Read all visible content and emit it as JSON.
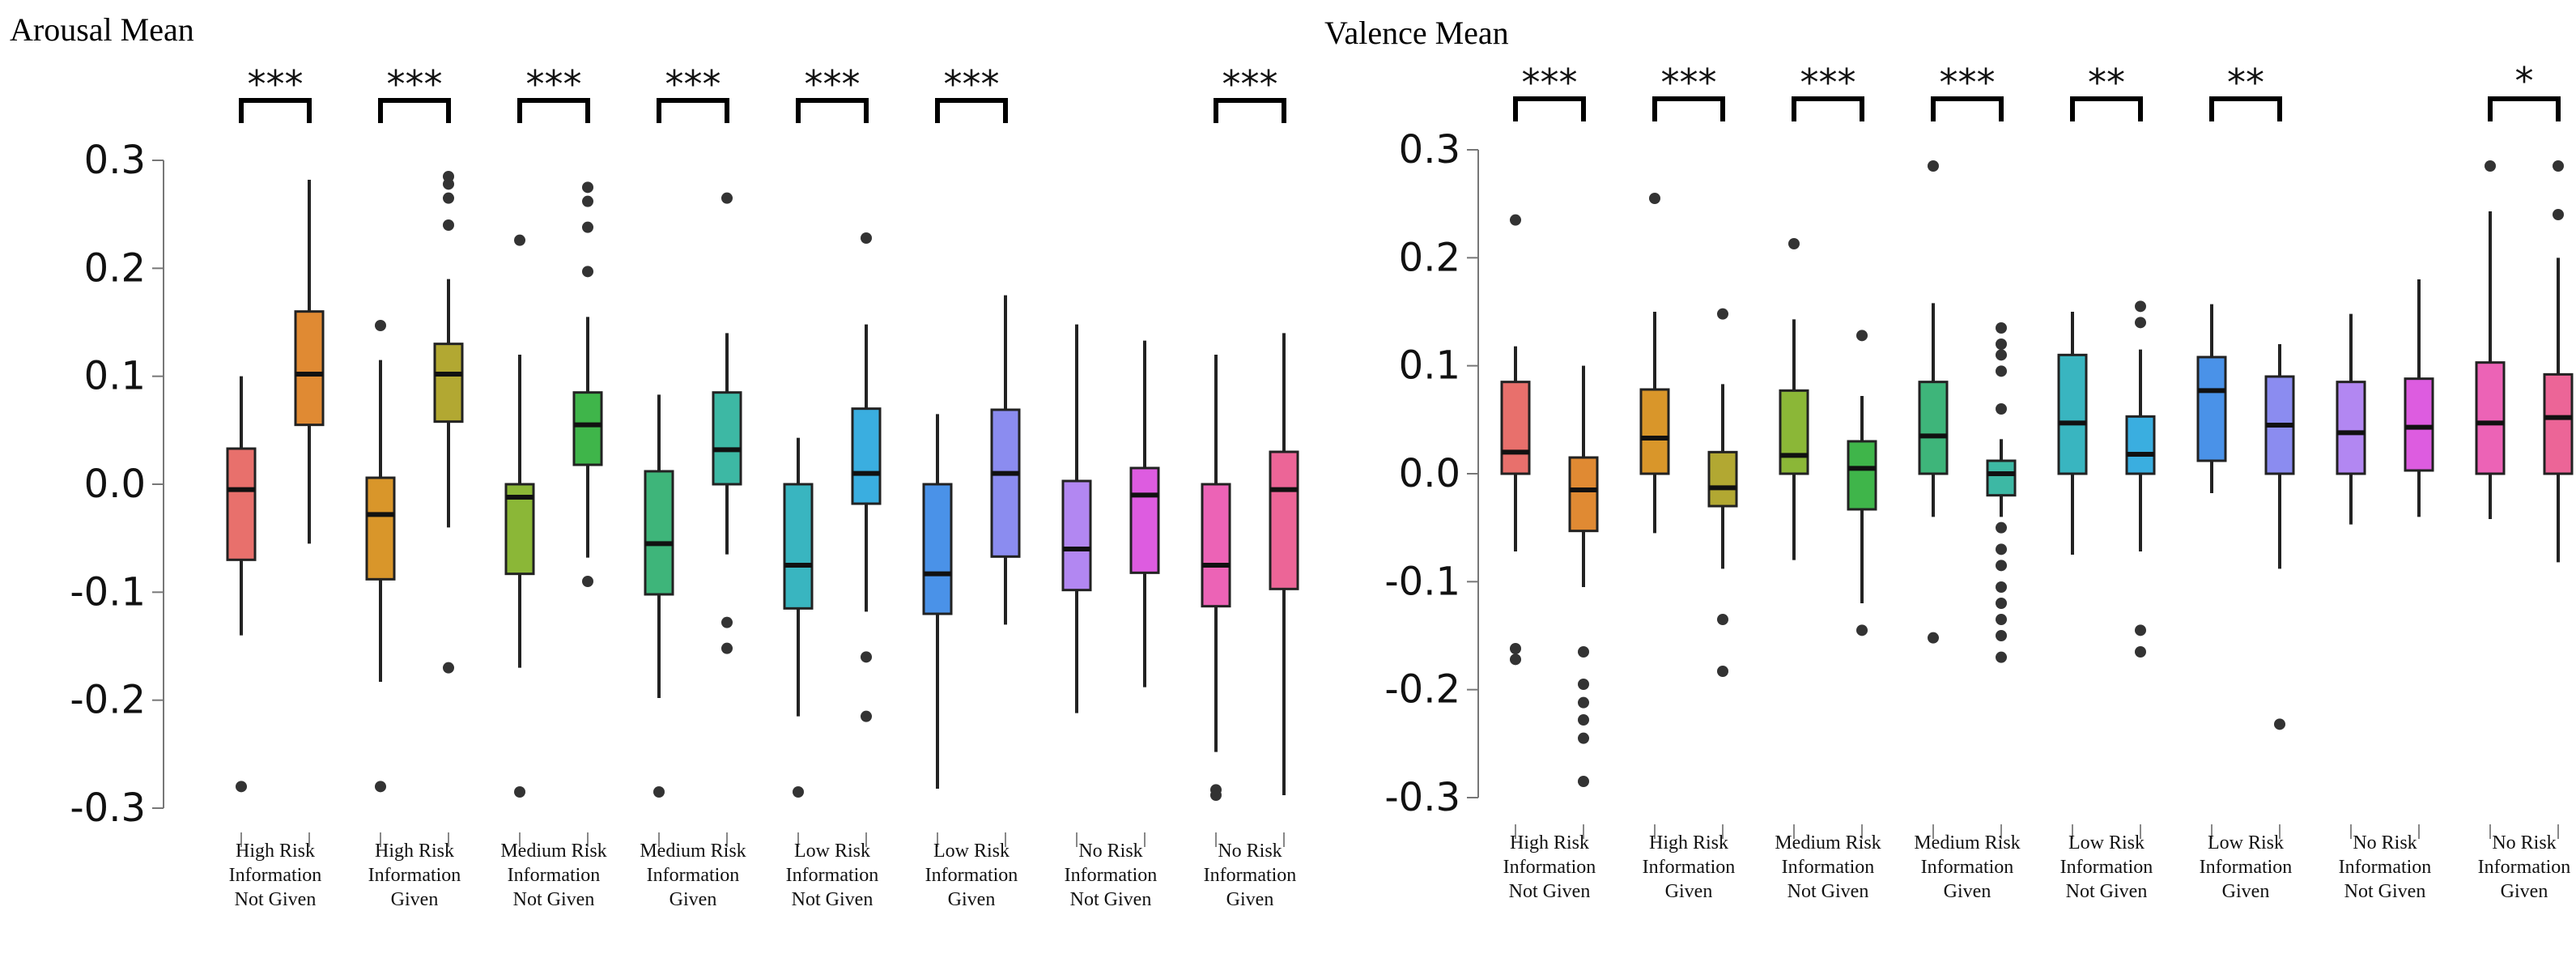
{
  "chart_data": [
    {
      "type": "boxplot",
      "title": "Arousal Mean",
      "ylim": [
        -0.3,
        0.3
      ],
      "yticks": [
        "0.3",
        "0.2",
        "0.1",
        "0.0",
        "-0.1",
        "-0.2",
        "-0.3"
      ],
      "ytick_values": [
        0.3,
        0.2,
        0.1,
        0.0,
        -0.1,
        -0.2,
        -0.3
      ],
      "groups": [
        {
          "label": [
            "High Risk",
            "Information",
            "Not Given"
          ],
          "boxes": [
            {
              "color": "#e8706c",
              "whislo": -0.14,
              "q1": -0.07,
              "med": -0.005,
              "q3": 0.033,
              "whishi": 0.1,
              "fliers": [
                -0.28
              ]
            },
            {
              "color": "#e08a33",
              "whislo": -0.055,
              "q1": 0.055,
              "med": 0.102,
              "q3": 0.16,
              "whishi": 0.282,
              "fliers": []
            }
          ]
        },
        {
          "label": [
            "High Risk",
            "Information",
            "Given"
          ],
          "boxes": [
            {
              "color": "#d9962a",
              "whislo": -0.183,
              "q1": -0.088,
              "med": -0.028,
              "q3": 0.006,
              "whishi": 0.115,
              "fliers": [
                -0.28,
                0.147
              ]
            },
            {
              "color": "#b2a832",
              "whislo": -0.04,
              "q1": 0.058,
              "med": 0.102,
              "q3": 0.13,
              "whishi": 0.19,
              "fliers": [
                -0.17,
                0.24,
                0.265,
                0.278,
                0.285
              ]
            }
          ]
        },
        {
          "label": [
            "Medium Risk",
            "Information",
            "Not Given"
          ],
          "boxes": [
            {
              "color": "#8bb737",
              "whislo": -0.17,
              "q1": -0.083,
              "med": -0.012,
              "q3": 0.0,
              "whishi": 0.12,
              "fliers": [
                -0.285,
                0.226
              ]
            },
            {
              "color": "#3fb54a",
              "whislo": -0.068,
              "q1": 0.018,
              "med": 0.055,
              "q3": 0.085,
              "whishi": 0.155,
              "fliers": [
                -0.09,
                0.197,
                0.238,
                0.262,
                0.275
              ]
            }
          ]
        },
        {
          "label": [
            "Medium Risk",
            "Information",
            "Given"
          ],
          "boxes": [
            {
              "color": "#3eb57a",
              "whislo": -0.198,
              "q1": -0.102,
              "med": -0.055,
              "q3": 0.012,
              "whishi": 0.083,
              "fliers": [
                -0.285
              ]
            },
            {
              "color": "#3db8a4",
              "whislo": -0.065,
              "q1": 0.0,
              "med": 0.032,
              "q3": 0.085,
              "whishi": 0.14,
              "fliers": [
                -0.152,
                -0.128,
                0.265
              ]
            }
          ]
        },
        {
          "label": [
            "Low Risk",
            "Information",
            "Not Given"
          ],
          "boxes": [
            {
              "color": "#39b5c0",
              "whislo": -0.215,
              "q1": -0.115,
              "med": -0.075,
              "q3": 0.0,
              "whishi": 0.043,
              "fliers": [
                -0.285
              ]
            },
            {
              "color": "#3aaee0",
              "whislo": -0.118,
              "q1": -0.018,
              "med": 0.01,
              "q3": 0.07,
              "whishi": 0.148,
              "fliers": [
                -0.215,
                -0.16,
                0.228
              ]
            }
          ]
        },
        {
          "label": [
            "Low Risk",
            "Information",
            "Given"
          ],
          "boxes": [
            {
              "color": "#4a92e8",
              "whislo": -0.282,
              "q1": -0.12,
              "med": -0.083,
              "q3": 0.0,
              "whishi": 0.065,
              "fliers": []
            },
            {
              "color": "#8b8cf0",
              "whislo": -0.13,
              "q1": -0.067,
              "med": 0.01,
              "q3": 0.069,
              "whishi": 0.175,
              "fliers": []
            }
          ]
        },
        {
          "label": [
            "No Risk",
            "Information",
            "Not Given"
          ],
          "boxes": [
            {
              "color": "#b287f2",
              "whislo": -0.212,
              "q1": -0.098,
              "med": -0.06,
              "q3": 0.003,
              "whishi": 0.148,
              "fliers": []
            },
            {
              "color": "#dd5ce0",
              "whislo": -0.188,
              "q1": -0.082,
              "med": -0.01,
              "q3": 0.015,
              "whishi": 0.133,
              "fliers": []
            }
          ]
        },
        {
          "label": [
            "No Risk",
            "Information",
            "Given"
          ],
          "boxes": [
            {
              "color": "#ec63b6",
              "whislo": -0.248,
              "q1": -0.113,
              "med": -0.075,
              "q3": 0.0,
              "whishi": 0.12,
              "fliers": [
                -0.288,
                -0.283
              ]
            },
            {
              "color": "#ec6597",
              "whislo": -0.288,
              "q1": -0.097,
              "med": -0.005,
              "q3": 0.03,
              "whishi": 0.14,
              "fliers": []
            }
          ]
        }
      ],
      "significance": [
        {
          "group": 0,
          "label": "***"
        },
        {
          "group": 1,
          "label": "***"
        },
        {
          "group": 2,
          "label": "***"
        },
        {
          "group": 3,
          "label": "***"
        },
        {
          "group": 4,
          "label": "***"
        },
        {
          "group": 5,
          "label": "***"
        },
        {
          "group": 7,
          "label": "***"
        }
      ]
    },
    {
      "type": "boxplot",
      "title": "Valence Mean",
      "ylim": [
        -0.3,
        0.3
      ],
      "yticks": [
        "0.3",
        "0.2",
        "0.1",
        "0.0",
        "-0.1",
        "-0.2",
        "-0.3"
      ],
      "ytick_values": [
        0.3,
        0.2,
        0.1,
        0.0,
        -0.1,
        -0.2,
        -0.3
      ],
      "groups": [
        {
          "label": [
            "High Risk",
            "Information",
            "Not Given"
          ],
          "boxes": [
            {
              "color": "#e8706c",
              "whislo": -0.072,
              "q1": 0.0,
              "med": 0.02,
              "q3": 0.085,
              "whishi": 0.118,
              "fliers": [
                -0.172,
                -0.162,
                0.235
              ]
            },
            {
              "color": "#e08a33",
              "whislo": -0.105,
              "q1": -0.053,
              "med": -0.015,
              "q3": 0.015,
              "whishi": 0.1,
              "fliers": [
                -0.285,
                -0.245,
                -0.228,
                -0.212,
                -0.195,
                -0.165
              ]
            }
          ]
        },
        {
          "label": [
            "High Risk",
            "Information",
            "Given"
          ],
          "boxes": [
            {
              "color": "#d9962a",
              "whislo": -0.055,
              "q1": 0.0,
              "med": 0.033,
              "q3": 0.078,
              "whishi": 0.15,
              "fliers": [
                0.255
              ]
            },
            {
              "color": "#b2a832",
              "whislo": -0.088,
              "q1": -0.03,
              "med": -0.013,
              "q3": 0.02,
              "whishi": 0.083,
              "fliers": [
                -0.183,
                -0.135,
                0.148
              ]
            }
          ]
        },
        {
          "label": [
            "Medium Risk",
            "Information",
            "Not Given"
          ],
          "boxes": [
            {
              "color": "#8bb737",
              "whislo": -0.08,
              "q1": 0.0,
              "med": 0.017,
              "q3": 0.077,
              "whishi": 0.143,
              "fliers": [
                0.213
              ]
            },
            {
              "color": "#3fb54a",
              "whislo": -0.12,
              "q1": -0.033,
              "med": 0.005,
              "q3": 0.03,
              "whishi": 0.072,
              "fliers": [
                -0.145,
                0.128
              ]
            }
          ]
        },
        {
          "label": [
            "Medium Risk",
            "Information",
            "Given"
          ],
          "boxes": [
            {
              "color": "#3eb57a",
              "whislo": -0.04,
              "q1": 0.0,
              "med": 0.035,
              "q3": 0.085,
              "whishi": 0.158,
              "fliers": [
                -0.152,
                0.285
              ]
            },
            {
              "color": "#3db8a4",
              "whislo": -0.04,
              "q1": -0.02,
              "med": 0.0,
              "q3": 0.012,
              "whishi": 0.032,
              "fliers": [
                -0.17,
                -0.15,
                -0.135,
                -0.12,
                -0.105,
                -0.085,
                -0.07,
                -0.05,
                0.06,
                0.095,
                0.11,
                0.12,
                0.135
              ]
            }
          ]
        },
        {
          "label": [
            "Low Risk",
            "Information",
            "Not Given"
          ],
          "boxes": [
            {
              "color": "#39b5c0",
              "whislo": -0.075,
              "q1": 0.0,
              "med": 0.047,
              "q3": 0.11,
              "whishi": 0.15,
              "fliers": []
            },
            {
              "color": "#3aaee0",
              "whislo": -0.072,
              "q1": 0.0,
              "med": 0.018,
              "q3": 0.053,
              "whishi": 0.115,
              "fliers": [
                -0.165,
                -0.145,
                0.14,
                0.155
              ]
            }
          ]
        },
        {
          "label": [
            "Low Risk",
            "Information",
            "Given"
          ],
          "boxes": [
            {
              "color": "#4a92e8",
              "whislo": -0.018,
              "q1": 0.012,
              "med": 0.077,
              "q3": 0.108,
              "whishi": 0.157,
              "fliers": []
            },
            {
              "color": "#8b8cf0",
              "whislo": -0.088,
              "q1": 0.0,
              "med": 0.045,
              "q3": 0.09,
              "whishi": 0.12,
              "fliers": [
                -0.232
              ]
            }
          ]
        },
        {
          "label": [
            "No Risk",
            "Information",
            "Not Given"
          ],
          "boxes": [
            {
              "color": "#b287f2",
              "whislo": -0.047,
              "q1": 0.0,
              "med": 0.038,
              "q3": 0.085,
              "whishi": 0.148,
              "fliers": []
            },
            {
              "color": "#dd5ce0",
              "whislo": -0.04,
              "q1": 0.003,
              "med": 0.043,
              "q3": 0.088,
              "whishi": 0.18,
              "fliers": []
            }
          ]
        },
        {
          "label": [
            "No Risk",
            "Information",
            "Given"
          ],
          "boxes": [
            {
              "color": "#ec63b6",
              "whislo": -0.042,
              "q1": 0.0,
              "med": 0.047,
              "q3": 0.103,
              "whishi": 0.243,
              "fliers": [
                0.285
              ]
            },
            {
              "color": "#ec6597",
              "whislo": -0.082,
              "q1": 0.0,
              "med": 0.052,
              "q3": 0.092,
              "whishi": 0.2,
              "fliers": [
                0.24,
                0.285
              ]
            }
          ]
        }
      ],
      "significance": [
        {
          "group": 0,
          "label": "***"
        },
        {
          "group": 1,
          "label": "***"
        },
        {
          "group": 2,
          "label": "***"
        },
        {
          "group": 3,
          "label": "***"
        },
        {
          "group": 4,
          "label": "**"
        },
        {
          "group": 5,
          "label": "**"
        },
        {
          "group": 7,
          "label": "*"
        }
      ]
    }
  ]
}
